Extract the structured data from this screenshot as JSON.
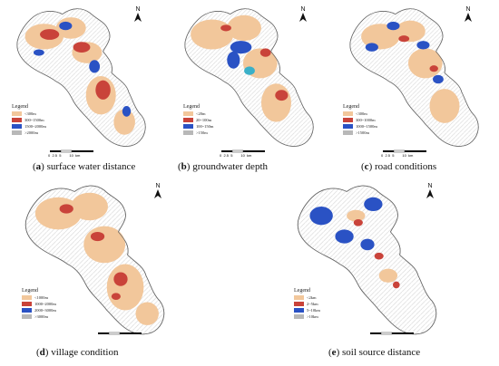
{
  "panels": [
    {
      "id": "a",
      "letter": "a",
      "title": "surface water distance",
      "legend_title": "Legend",
      "legend": [
        {
          "label": "<300m",
          "color": "#f2c79b"
        },
        {
          "label": "300~1500m",
          "color": "#c9433a"
        },
        {
          "label": "1500~2000m",
          "color": "#2a52c4"
        },
        {
          "label": ">2000m",
          "color": "#b8b8b8"
        }
      ],
      "north": "N",
      "scale": "0  2.5  5        10  km"
    },
    {
      "id": "b",
      "letter": "b",
      "title": "groundwater depth",
      "legend_title": "Legend",
      "legend": [
        {
          "label": "<20m",
          "color": "#f2c79b"
        },
        {
          "label": "20~100m",
          "color": "#c9433a"
        },
        {
          "label": "100~150m",
          "color": "#2a52c4"
        },
        {
          "label": ">150m",
          "color": "#b8b8b8"
        }
      ],
      "north": "N",
      "scale": "0  2.5  5        10  km"
    },
    {
      "id": "c",
      "letter": "c",
      "title": "road conditions",
      "legend_title": "Legend",
      "legend": [
        {
          "label": "<300m",
          "color": "#f2c79b"
        },
        {
          "label": "300~1000m",
          "color": "#c9433a"
        },
        {
          "label": "1000~1500m",
          "color": "#2a52c4"
        },
        {
          "label": ">1500m",
          "color": "#b8b8b8"
        }
      ],
      "north": "N",
      "scale": "0  2.5  5        10  km"
    },
    {
      "id": "d",
      "letter": "d",
      "title": "village condition",
      "legend_title": "Legend",
      "legend": [
        {
          "label": "<1000m",
          "color": "#f2c79b"
        },
        {
          "label": "1000~2000m",
          "color": "#c9433a"
        },
        {
          "label": "2000~3000m",
          "color": "#2a52c4"
        },
        {
          "label": ">3000m",
          "color": "#b8b8b8"
        }
      ],
      "north": "N",
      "scale": "0  2.5  5        10  km"
    },
    {
      "id": "e",
      "letter": "e",
      "title": "soil source distance",
      "legend_title": "Legend",
      "legend": [
        {
          "label": "<2km",
          "color": "#f2c79b"
        },
        {
          "label": "2~5km",
          "color": "#c9433a"
        },
        {
          "label": "5~10km",
          "color": "#2a52c4"
        },
        {
          "label": ">10km",
          "color": "#b8b8b8"
        }
      ],
      "north": "N",
      "scale": "0  2.5  5        10  km"
    }
  ]
}
